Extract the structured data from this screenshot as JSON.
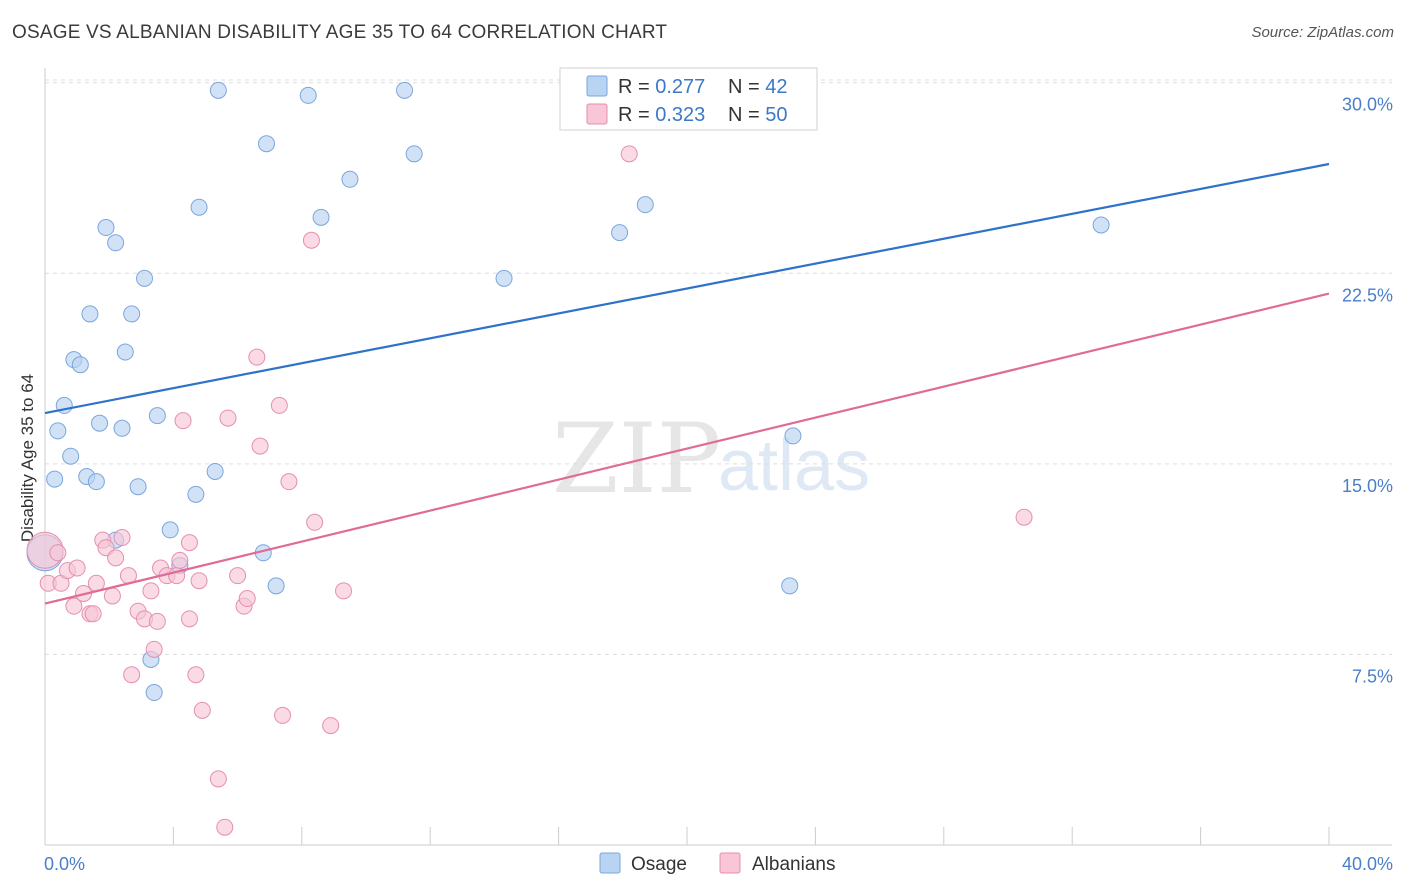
{
  "header": {
    "title": "OSAGE VS ALBANIAN DISABILITY AGE 35 TO 64 CORRELATION CHART",
    "source": "Source: ZipAtlas.com"
  },
  "watermark": {
    "zip": "ZIP",
    "atlas": "atlas"
  },
  "legend": {
    "osage": {
      "r_label": "R = ",
      "r_value": "0.277",
      "n_label": "N = ",
      "n_value": "42"
    },
    "albanians": {
      "r_label": "R = ",
      "r_value": "0.323",
      "n_label": "N = ",
      "n_value": "50"
    }
  },
  "colors": {
    "osage_fill": "#b9d3f2",
    "osage_stroke": "#7aa6dc",
    "osage_line": "#2e72c9",
    "albanians_fill": "#f8c6d6",
    "albanians_stroke": "#e58fae",
    "albanians_line": "#e06b96",
    "grid": "#dddddd",
    "axis_label": "#4a7fc8"
  },
  "chart_data": {
    "type": "scatter",
    "title": "OSAGE VS ALBANIAN DISABILITY AGE 35 TO 64 CORRELATION CHART",
    "xlabel": "",
    "ylabel": "Disability Age 35 to 64",
    "xlim": [
      0,
      40
    ],
    "ylim": [
      0,
      30.5
    ],
    "x_tick_labels": [
      "0.0%",
      "40.0%"
    ],
    "y_ticks": [
      {
        "value": 7.5,
        "label": "7.5%"
      },
      {
        "value": 15.0,
        "label": "15.0%"
      },
      {
        "value": 22.5,
        "label": "22.5%"
      },
      {
        "value": 30.0,
        "label": "30.0%"
      }
    ],
    "legend_position": "bottom",
    "series": [
      {
        "name": "Osage",
        "r": 0.277,
        "n": 42,
        "trend": {
          "x": [
            0,
            40
          ],
          "y": [
            17.0,
            26.8
          ]
        },
        "points": [
          [
            0.0,
            11.5
          ],
          [
            0.3,
            14.4
          ],
          [
            0.4,
            16.3
          ],
          [
            0.6,
            17.3
          ],
          [
            0.8,
            15.3
          ],
          [
            0.9,
            19.1
          ],
          [
            1.1,
            18.9
          ],
          [
            1.3,
            14.5
          ],
          [
            1.6,
            14.3
          ],
          [
            1.4,
            20.9
          ],
          [
            1.7,
            16.6
          ],
          [
            1.9,
            24.3
          ],
          [
            2.2,
            12.0
          ],
          [
            2.2,
            23.7
          ],
          [
            2.4,
            16.4
          ],
          [
            2.5,
            19.4
          ],
          [
            2.7,
            20.9
          ],
          [
            2.9,
            14.1
          ],
          [
            3.1,
            22.3
          ],
          [
            3.3,
            7.3
          ],
          [
            3.4,
            6.0
          ],
          [
            3.5,
            16.9
          ],
          [
            3.9,
            12.4
          ],
          [
            4.2,
            11.0
          ],
          [
            4.7,
            13.8
          ],
          [
            4.8,
            25.1
          ],
          [
            5.3,
            14.7
          ],
          [
            5.4,
            29.7
          ],
          [
            6.8,
            11.5
          ],
          [
            6.9,
            27.6
          ],
          [
            7.2,
            10.2
          ],
          [
            8.2,
            29.5
          ],
          [
            8.6,
            24.7
          ],
          [
            9.5,
            26.2
          ],
          [
            11.2,
            29.7
          ],
          [
            11.5,
            27.2
          ],
          [
            14.3,
            22.3
          ],
          [
            17.9,
            24.1
          ],
          [
            18.7,
            25.2
          ],
          [
            23.3,
            16.1
          ],
          [
            23.2,
            10.2
          ],
          [
            32.9,
            24.4
          ]
        ]
      },
      {
        "name": "Albanians",
        "r": 0.323,
        "n": 50,
        "trend": {
          "x": [
            0,
            40
          ],
          "y": [
            9.5,
            21.7
          ]
        },
        "points": [
          [
            0.0,
            11.6
          ],
          [
            0.1,
            10.3
          ],
          [
            0.4,
            11.5
          ],
          [
            0.5,
            10.3
          ],
          [
            0.7,
            10.8
          ],
          [
            0.9,
            9.4
          ],
          [
            1.0,
            10.9
          ],
          [
            1.2,
            9.9
          ],
          [
            1.4,
            9.1
          ],
          [
            1.5,
            9.1
          ],
          [
            1.6,
            10.3
          ],
          [
            1.8,
            12.0
          ],
          [
            1.9,
            11.7
          ],
          [
            2.1,
            9.8
          ],
          [
            2.2,
            11.3
          ],
          [
            2.4,
            12.1
          ],
          [
            2.6,
            10.6
          ],
          [
            2.7,
            6.7
          ],
          [
            2.9,
            9.2
          ],
          [
            3.1,
            8.9
          ],
          [
            3.3,
            10.0
          ],
          [
            3.4,
            7.7
          ],
          [
            3.5,
            8.8
          ],
          [
            3.6,
            10.9
          ],
          [
            3.8,
            10.6
          ],
          [
            4.1,
            10.6
          ],
          [
            4.2,
            11.2
          ],
          [
            4.3,
            16.7
          ],
          [
            4.5,
            11.9
          ],
          [
            4.5,
            8.9
          ],
          [
            4.7,
            6.7
          ],
          [
            4.8,
            10.4
          ],
          [
            4.9,
            5.3
          ],
          [
            5.4,
            2.6
          ],
          [
            5.7,
            16.8
          ],
          [
            5.6,
            0.7
          ],
          [
            6.0,
            10.6
          ],
          [
            6.2,
            9.4
          ],
          [
            6.3,
            9.7
          ],
          [
            6.6,
            19.2
          ],
          [
            6.7,
            15.7
          ],
          [
            7.3,
            17.3
          ],
          [
            7.4,
            5.1
          ],
          [
            7.6,
            14.3
          ],
          [
            8.3,
            23.8
          ],
          [
            8.4,
            12.7
          ],
          [
            8.9,
            4.7
          ],
          [
            9.3,
            10.0
          ],
          [
            18.2,
            27.2
          ],
          [
            30.5,
            12.9
          ]
        ]
      }
    ]
  }
}
